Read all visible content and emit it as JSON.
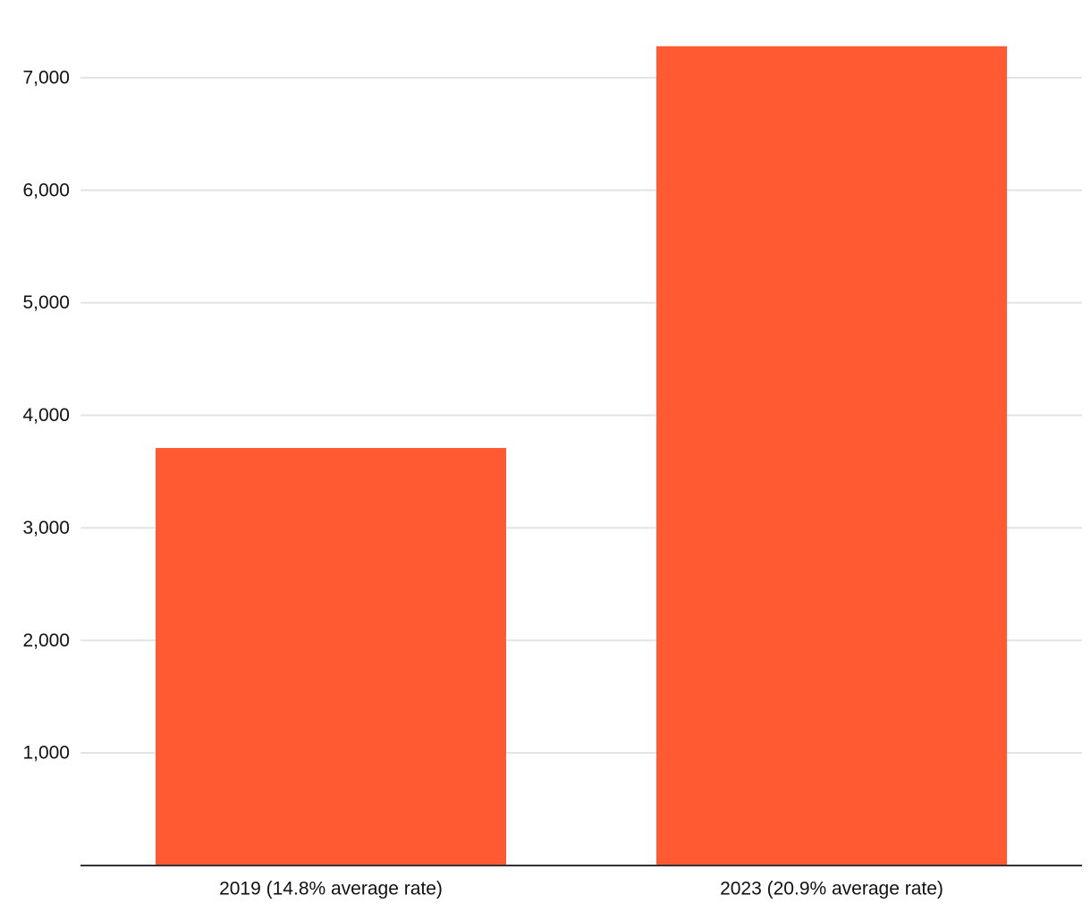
{
  "chart_data": {
    "type": "bar",
    "categories": [
      "2019 (14.8% average rate)",
      "2023 (20.9% average rate)"
    ],
    "values": [
      3710,
      7280
    ],
    "color": "#ff5a32",
    "ylim": [
      0,
      7500
    ],
    "yticks": [
      {
        "value": 1000,
        "label": "1,000"
      },
      {
        "value": 2000,
        "label": "2,000"
      },
      {
        "value": 3000,
        "label": "3,000"
      },
      {
        "value": 4000,
        "label": "4,000"
      },
      {
        "value": 5000,
        "label": "5,000"
      },
      {
        "value": 6000,
        "label": "6,000"
      },
      {
        "value": 7000,
        "label": "7,000"
      }
    ],
    "grid": true
  }
}
